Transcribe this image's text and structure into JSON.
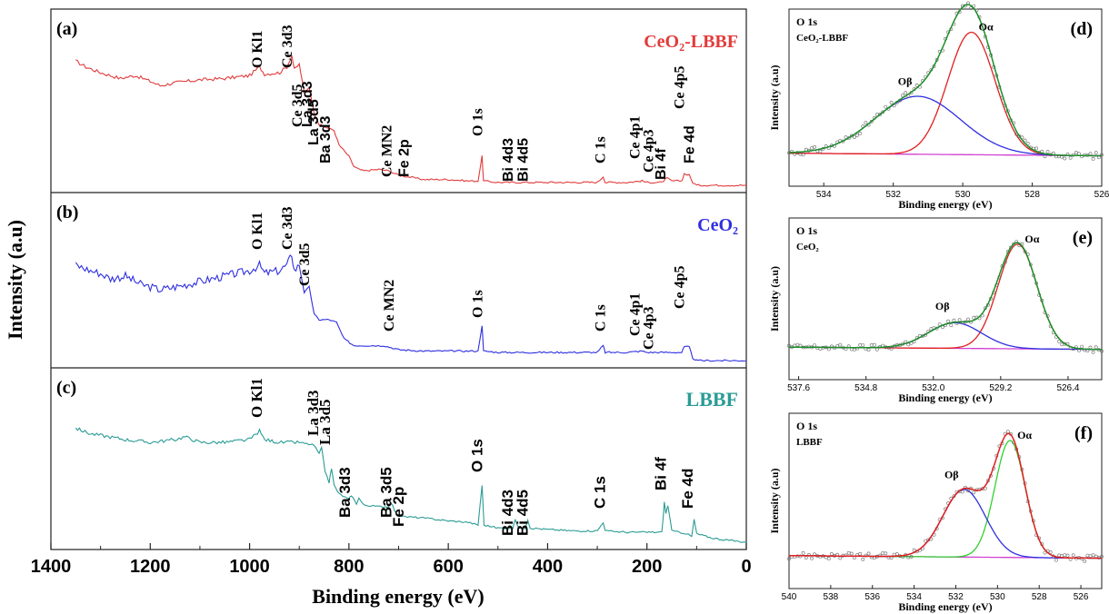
{
  "figure": {
    "ylabel": "Intensity (a.u)",
    "xlabel": "Binding energy (eV)"
  },
  "chart_data": [
    {
      "id": "a",
      "type": "line",
      "panel_label": "(a)",
      "series": [
        {
          "name": "CeO2-LBBF",
          "color": "#e23b3b",
          "points": [
            [
              1350,
              0.86
            ],
            [
              1330,
              0.82
            ],
            [
              1300,
              0.78
            ],
            [
              1260,
              0.74
            ],
            [
              1230,
              0.76
            ],
            [
              1200,
              0.72
            ],
            [
              1180,
              0.69
            ],
            [
              1150,
              0.71
            ],
            [
              1100,
              0.73
            ],
            [
              1050,
              0.74
            ],
            [
              1000,
              0.76
            ],
            [
              980,
              0.82
            ],
            [
              970,
              0.77
            ],
            [
              940,
              0.78
            ],
            [
              925,
              0.82
            ],
            [
              915,
              0.9
            ],
            [
              910,
              0.8
            ],
            [
              900,
              0.84
            ],
            [
              890,
              0.64
            ],
            [
              880,
              0.68
            ],
            [
              870,
              0.5
            ],
            [
              860,
              0.42
            ],
            [
              845,
              0.4
            ],
            [
              830,
              0.38
            ],
            [
              820,
              0.28
            ],
            [
              800,
              0.2
            ],
            [
              790,
              0.13
            ],
            [
              780,
              0.11
            ],
            [
              770,
              0.1
            ],
            [
              740,
              0.11
            ],
            [
              720,
              0.1
            ],
            [
              700,
              0.07
            ],
            [
              650,
              0.04
            ],
            [
              600,
              0.04
            ],
            [
              560,
              0.03
            ],
            [
              540,
              0.03
            ],
            [
              532,
              0.2
            ],
            [
              529,
              0.03
            ],
            [
              500,
              0.02
            ],
            [
              450,
              0.02
            ],
            [
              400,
              0.02
            ],
            [
              350,
              0.02
            ],
            [
              300,
              0.02
            ],
            [
              288,
              0.06
            ],
            [
              284,
              0.02
            ],
            [
              240,
              0.02
            ],
            [
              210,
              0.03
            ],
            [
              200,
              0.02
            ],
            [
              170,
              0.02
            ],
            [
              160,
              0.05
            ],
            [
              150,
              0.03
            ],
            [
              130,
              0.03
            ],
            [
              125,
              0.08
            ],
            [
              115,
              0.07
            ],
            [
              108,
              0.02
            ],
            [
              100,
              0.0
            ],
            [
              80,
              0.0
            ],
            [
              0,
              0.0
            ]
          ]
        }
      ],
      "legend_label": "CeO₂-LBBF",
      "annotations": [
        "O Kl1",
        "Ce 3d3",
        "Ce 3d5",
        "La 3d5",
        "La 3d3",
        "Ba 3d3",
        "Ce MN2",
        "Fe 2p",
        "O 1s",
        "Bi 4d3",
        "Bi 4d5",
        "C 1s",
        "Ce 4p1",
        "Ce 4p3",
        "Bi 4f",
        "Ce 4p5",
        "Fe 4d"
      ],
      "xlim": [
        1400,
        0
      ]
    },
    {
      "id": "b",
      "type": "line",
      "panel_label": "(b)",
      "series": [
        {
          "name": "CeO2",
          "color": "#2f2fe0",
          "points": [
            [
              1350,
              0.7
            ],
            [
              1320,
              0.66
            ],
            [
              1300,
              0.64
            ],
            [
              1280,
              0.6
            ],
            [
              1250,
              0.62
            ],
            [
              1220,
              0.56
            ],
            [
              1200,
              0.54
            ],
            [
              1180,
              0.52
            ],
            [
              1150,
              0.54
            ],
            [
              1100,
              0.58
            ],
            [
              1050,
              0.62
            ],
            [
              1000,
              0.66
            ],
            [
              980,
              0.7
            ],
            [
              970,
              0.64
            ],
            [
              940,
              0.66
            ],
            [
              925,
              0.7
            ],
            [
              915,
              0.78
            ],
            [
              910,
              0.66
            ],
            [
              900,
              0.7
            ],
            [
              890,
              0.5
            ],
            [
              880,
              0.54
            ],
            [
              870,
              0.34
            ],
            [
              860,
              0.3
            ],
            [
              840,
              0.3
            ],
            [
              825,
              0.28
            ],
            [
              810,
              0.16
            ],
            [
              790,
              0.11
            ],
            [
              760,
              0.11
            ],
            [
              730,
              0.11
            ],
            [
              700,
              0.08
            ],
            [
              650,
              0.07
            ],
            [
              600,
              0.07
            ],
            [
              560,
              0.07
            ],
            [
              540,
              0.07
            ],
            [
              532,
              0.26
            ],
            [
              529,
              0.07
            ],
            [
              500,
              0.06
            ],
            [
              450,
              0.06
            ],
            [
              400,
              0.06
            ],
            [
              350,
              0.06
            ],
            [
              300,
              0.06
            ],
            [
              288,
              0.11
            ],
            [
              284,
              0.06
            ],
            [
              240,
              0.06
            ],
            [
              210,
              0.07
            ],
            [
              200,
              0.06
            ],
            [
              170,
              0.06
            ],
            [
              130,
              0.06
            ],
            [
              125,
              0.1
            ],
            [
              115,
              0.1
            ],
            [
              108,
              0.02
            ],
            [
              100,
              0.0
            ],
            [
              0,
              0.0
            ]
          ]
        }
      ],
      "legend_label": "CeO₂",
      "annotations": [
        "O Kl1",
        "Ce 3d3",
        "Ce 3d5",
        "Ce MN2",
        "O 1s",
        "C 1s",
        "Ce 4p1",
        "Ce 4p3",
        "Ce 4p5"
      ],
      "xlim": [
        1400,
        0
      ]
    },
    {
      "id": "c",
      "type": "line",
      "panel_label": "(c)",
      "series": [
        {
          "name": "LBBF",
          "color": "#2a9c95",
          "points": [
            [
              1350,
              0.8
            ],
            [
              1320,
              0.76
            ],
            [
              1300,
              0.75
            ],
            [
              1250,
              0.72
            ],
            [
              1200,
              0.7
            ],
            [
              1150,
              0.72
            ],
            [
              1130,
              0.74
            ],
            [
              1100,
              0.7
            ],
            [
              1050,
              0.7
            ],
            [
              1000,
              0.72
            ],
            [
              980,
              0.78
            ],
            [
              970,
              0.72
            ],
            [
              940,
              0.7
            ],
            [
              900,
              0.7
            ],
            [
              870,
              0.68
            ],
            [
              860,
              0.62
            ],
            [
              855,
              0.66
            ],
            [
              848,
              0.5
            ],
            [
              840,
              0.42
            ],
            [
              835,
              0.52
            ],
            [
              830,
              0.4
            ],
            [
              820,
              0.34
            ],
            [
              800,
              0.3
            ],
            [
              795,
              0.33
            ],
            [
              785,
              0.27
            ],
            [
              780,
              0.31
            ],
            [
              770,
              0.26
            ],
            [
              740,
              0.25
            ],
            [
              720,
              0.25
            ],
            [
              715,
              0.28
            ],
            [
              705,
              0.2
            ],
            [
              690,
              0.18
            ],
            [
              650,
              0.17
            ],
            [
              600,
              0.15
            ],
            [
              560,
              0.14
            ],
            [
              540,
              0.12
            ],
            [
              532,
              0.4
            ],
            [
              528,
              0.12
            ],
            [
              500,
              0.1
            ],
            [
              470,
              0.1
            ],
            [
              465,
              0.16
            ],
            [
              458,
              0.1
            ],
            [
              445,
              0.1
            ],
            [
              440,
              0.16
            ],
            [
              435,
              0.1
            ],
            [
              400,
              0.09
            ],
            [
              350,
              0.08
            ],
            [
              300,
              0.08
            ],
            [
              288,
              0.14
            ],
            [
              284,
              0.08
            ],
            [
              240,
              0.07
            ],
            [
              200,
              0.07
            ],
            [
              170,
              0.07
            ],
            [
              165,
              0.28
            ],
            [
              162,
              0.2
            ],
            [
              158,
              0.26
            ],
            [
              150,
              0.08
            ],
            [
              120,
              0.06
            ],
            [
              110,
              0.04
            ],
            [
              105,
              0.16
            ],
            [
              100,
              0.06
            ],
            [
              70,
              0.03
            ],
            [
              50,
              0.02
            ],
            [
              0,
              0.0
            ]
          ]
        }
      ],
      "legend_label": "LBBF",
      "annotations": [
        "O Kl1",
        "La 3d3",
        "La 3d5",
        "Ba 3d3",
        "Ba 3d5",
        "Fe 2p",
        "O 1s",
        "Bi 4d3",
        "Bi 4d5",
        "C 1s",
        "Bi 4f",
        "Fe 4d"
      ],
      "xlim": [
        1400,
        0
      ],
      "xticks": [
        1400,
        1200,
        1000,
        800,
        600,
        400,
        200,
        0
      ]
    },
    {
      "id": "d",
      "type": "line",
      "panel_label": "(d)",
      "text_top": "O 1s",
      "text_sub": "CeO₂-LBBF",
      "ylabel": "Intensity (a.u)",
      "xlabel": "Binding energy (eV)",
      "xlim": [
        535,
        526
      ],
      "xticks": [
        534,
        532,
        530,
        528,
        526
      ],
      "peak_labels": [
        "Oβ",
        "Oα"
      ],
      "components": [
        {
          "name": "Oα",
          "color": "#e02020",
          "center": 529.75,
          "fwhm": 1.6,
          "height": 0.93
        },
        {
          "name": "Oβ",
          "color": "#2f2fe0",
          "center": 531.3,
          "fwhm": 2.9,
          "height": 0.44
        },
        {
          "name": "Envelope",
          "color": "#1e8f2a"
        },
        {
          "name": "Background",
          "color": "#d040d0"
        }
      ]
    },
    {
      "id": "e",
      "type": "line",
      "panel_label": "(e)",
      "text_top": "O 1s",
      "text_sub": "CeO₂",
      "ylabel": "Intensity (a.u)",
      "xlabel": "Binding energy (eV)",
      "xlim": [
        538,
        525
      ],
      "xticks": [
        537.6,
        534.8,
        532.0,
        529.2,
        526.4
      ],
      "peak_labels": [
        "Oβ",
        "Oα"
      ],
      "components": [
        {
          "name": "Oα",
          "color": "#e02020",
          "center": 528.5,
          "fwhm": 1.9,
          "height": 0.9
        },
        {
          "name": "Oβ",
          "color": "#2f2fe0",
          "center": 531.1,
          "fwhm": 2.6,
          "height": 0.22
        },
        {
          "name": "Envelope",
          "color": "#1e8f2a"
        },
        {
          "name": "Background",
          "color": "#d040d0"
        }
      ]
    },
    {
      "id": "f",
      "type": "line",
      "panel_label": "(f)",
      "text_top": "O 1s",
      "text_sub": "LBBF",
      "ylabel": "Intensity (a.u)",
      "xlabel": "Binding energy (eV)",
      "xlim": [
        540,
        525
      ],
      "xticks": [
        540,
        538,
        536,
        534,
        532,
        530,
        528,
        526
      ],
      "peak_labels": [
        "Oβ",
        "Oα"
      ],
      "components": [
        {
          "name": "Oα",
          "color": "#30d030",
          "center": 529.4,
          "fwhm": 1.7,
          "height": 0.9
        },
        {
          "name": "Oβ",
          "color": "#2f2fe0",
          "center": 531.6,
          "fwhm": 2.4,
          "height": 0.52
        },
        {
          "name": "Envelope",
          "color": "#e02020"
        },
        {
          "name": "Background",
          "color": "#d040d0"
        }
      ]
    }
  ]
}
